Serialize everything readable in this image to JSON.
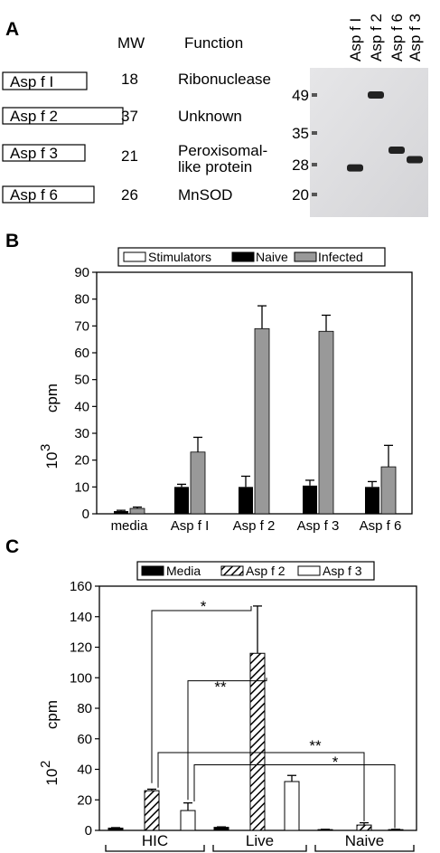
{
  "panelA": {
    "letter": "A",
    "headers": {
      "mw": "MW",
      "function": "Function"
    },
    "proteins": [
      {
        "name": "Asp f I",
        "mw": "18",
        "function": [
          "Ribonuclease"
        ]
      },
      {
        "name": "Asp f 2",
        "mw": "37",
        "function": [
          "Unknown"
        ]
      },
      {
        "name": "Asp f 3",
        "mw": "21",
        "function": [
          "Peroxisomal-",
          "like protein"
        ]
      },
      {
        "name": "Asp f 6",
        "mw": "26",
        "function": [
          "MnSOD"
        ]
      }
    ],
    "gel": {
      "lanes": [
        "Asp f I",
        "Asp f 2",
        "Asp f 6",
        "Asp f 3"
      ],
      "markers": [
        "49",
        "35",
        "28",
        "20"
      ],
      "band_levels_kda": [
        27,
        49,
        31,
        29
      ]
    }
  },
  "panelB": {
    "letter": "B",
    "legend": [
      "Stimulators",
      "Naive",
      "Infected"
    ],
    "ylabel": "cpm",
    "yexp": "10",
    "yexp_sup": "3",
    "ticks": [
      "0",
      "10",
      "20",
      "30",
      "40",
      "50",
      "60",
      "70",
      "80",
      "90"
    ]
  },
  "panelC": {
    "letter": "C",
    "legend": [
      "Media",
      "Asp f 2",
      "Asp f 3"
    ],
    "ylabel": "cpm",
    "yexp": "10",
    "yexp_sup": "2",
    "ticks": [
      "0",
      "20",
      "40",
      "60",
      "80",
      "100",
      "120",
      "140",
      "160"
    ],
    "groups": [
      "HIC",
      "Live",
      "Naive"
    ],
    "annotations": [
      "*",
      "**",
      "**",
      "*"
    ]
  },
  "chart_data": [
    {
      "type": "bar",
      "categories": [
        "media",
        "Asp f I",
        "Asp f 2",
        "Asp f 3",
        "Asp f 6"
      ],
      "series": [
        {
          "name": "Stimulators",
          "values": [
            0,
            0,
            0,
            0,
            0
          ]
        },
        {
          "name": "Naive",
          "values": [
            1,
            10,
            10,
            10.5,
            10
          ],
          "errors": [
            0.3,
            1,
            4,
            2,
            2
          ]
        },
        {
          "name": "Infected",
          "values": [
            2,
            23,
            69,
            68,
            17.5
          ],
          "errors": [
            0.5,
            5.5,
            8.5,
            6,
            8
          ]
        }
      ],
      "ylim": [
        0,
        90
      ],
      "colors": {
        "Stimulators": "#ffffff",
        "Naive": "#000000",
        "Infected": "#999999"
      }
    },
    {
      "type": "bar",
      "categories": [
        "HIC",
        "Live",
        "Naive"
      ],
      "series": [
        {
          "name": "Media",
          "values": [
            1.5,
            2,
            0.5
          ],
          "errors": [
            0.3,
            0.3,
            0.2
          ]
        },
        {
          "name": "Asp f 2",
          "values": [
            26,
            116,
            3.5
          ],
          "errors": [
            1,
            31,
            1.5
          ]
        },
        {
          "name": "Asp f 3",
          "values": [
            13,
            32,
            0.5
          ],
          "errors": [
            5,
            4,
            0.2
          ]
        }
      ],
      "ylim": [
        0,
        160
      ],
      "colors": {
        "Media": "#000000",
        "Asp f 2": "hatched",
        "Asp f 3": "#ffffff"
      }
    }
  ]
}
